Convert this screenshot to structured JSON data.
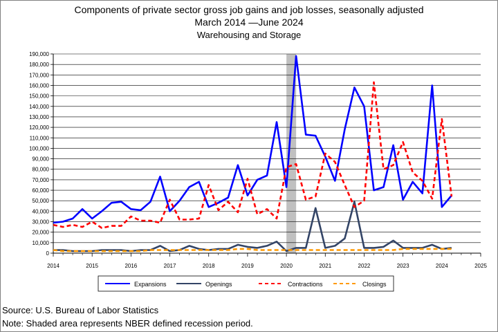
{
  "title_lines": [
    "Components of private sector gross job gains and job losses, seasonally adjusted",
    "March 2014  —June 2024",
    "Warehousing and Storage"
  ],
  "source": "Source: U.S. Bureau of Labor Statistics",
  "note": "Note: Shaded area represents NBER defined recession period.",
  "colors": {
    "expansions": "#0000ff",
    "openings": "#334466",
    "contractions": "#ff0000",
    "closings": "#ff9900",
    "recession": "#c0c0c0"
  },
  "chart_data": {
    "type": "line",
    "xlim": [
      2014,
      2025
    ],
    "ylim": [
      0,
      190000
    ],
    "x_ticks": [
      "2014",
      "2015",
      "2016",
      "2017",
      "2018",
      "2019",
      "2020",
      "2021",
      "2022",
      "2023",
      "2024",
      "2025"
    ],
    "y_ticks": [
      "0",
      "10,000",
      "20,000",
      "30,000",
      "40,000",
      "50,000",
      "60,000",
      "70,000",
      "80,000",
      "90,000",
      "100,000",
      "110,000",
      "120,000",
      "130,000",
      "140,000",
      "150,000",
      "160,000",
      "170,000",
      "180,000",
      "190,000"
    ],
    "grid": true,
    "legend_position": "bottom",
    "recession": [
      2020.0,
      2020.25
    ],
    "x": [
      2014.0,
      2014.25,
      2014.5,
      2014.75,
      2015.0,
      2015.25,
      2015.5,
      2015.75,
      2016.0,
      2016.25,
      2016.5,
      2016.75,
      2017.0,
      2017.25,
      2017.5,
      2017.75,
      2018.0,
      2018.25,
      2018.5,
      2018.75,
      2019.0,
      2019.25,
      2019.5,
      2019.75,
      2020.0,
      2020.25,
      2020.5,
      2020.75,
      2021.0,
      2021.25,
      2021.5,
      2021.75,
      2022.0,
      2022.25,
      2022.5,
      2022.75,
      2023.0,
      2023.25,
      2023.5,
      2023.75,
      2024.0,
      2024.25
    ],
    "series": [
      {
        "name": "Expansions",
        "style": "solid",
        "values": [
          29000,
          30000,
          33000,
          42000,
          33000,
          40000,
          48000,
          49000,
          42000,
          41000,
          49000,
          73000,
          40000,
          50000,
          63000,
          68000,
          44000,
          48000,
          53000,
          84000,
          55000,
          70000,
          74000,
          125000,
          63000,
          188000,
          113000,
          112000,
          92000,
          69000,
          118000,
          158000,
          140000,
          60000,
          63000,
          103000,
          51000,
          68000,
          57000,
          160000,
          44000,
          55000
        ]
      },
      {
        "name": "Openings",
        "style": "solid",
        "values": [
          3000,
          3000,
          2000,
          2000,
          2000,
          3000,
          3000,
          3000,
          2000,
          3000,
          3000,
          7000,
          2000,
          3000,
          7000,
          4000,
          3000,
          4000,
          4000,
          8000,
          6000,
          5000,
          7000,
          11000,
          2000,
          5000,
          5000,
          43000,
          5000,
          7000,
          14000,
          49000,
          5000,
          5000,
          6000,
          12000,
          5000,
          5000,
          5000,
          8000,
          4000,
          5000
        ]
      },
      {
        "name": "Contractions",
        "style": "dashed",
        "values": [
          27000,
          25000,
          27000,
          25000,
          30000,
          24000,
          26000,
          26000,
          35000,
          31000,
          31000,
          29000,
          51000,
          32000,
          32000,
          33000,
          65000,
          41000,
          49000,
          39000,
          71000,
          37000,
          42000,
          33000,
          82000,
          85000,
          51000,
          54000,
          95000,
          87000,
          65000,
          44000,
          50000,
          163000,
          80000,
          84000,
          106000,
          77000,
          69000,
          52000,
          128000,
          54000
        ]
      },
      {
        "name": "Closings",
        "style": "dashed",
        "values": [
          3000,
          2000,
          2000,
          2000,
          2000,
          2000,
          2000,
          2000,
          2000,
          2000,
          3000,
          3000,
          3000,
          3000,
          3000,
          3000,
          3000,
          3000,
          3000,
          4000,
          4000,
          3000,
          3000,
          3000,
          3000,
          3000,
          3000,
          3000,
          3000,
          3000,
          3000,
          3000,
          3000,
          3000,
          3000,
          3000,
          4000,
          4000,
          4000,
          4000,
          4000,
          4000
        ]
      }
    ]
  }
}
